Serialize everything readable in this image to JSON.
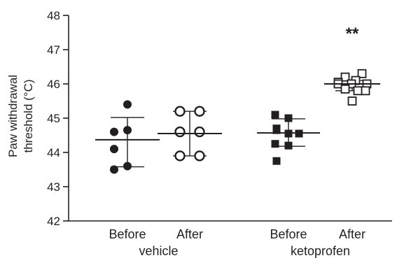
{
  "chart_data": {
    "type": "scatter",
    "title": "",
    "ylabel_line1": "Paw withdrawal",
    "ylabel_line2": "threshold (°C)",
    "ylim": [
      42,
      48
    ],
    "yticks": [
      42,
      43,
      44,
      45,
      46,
      47,
      48
    ],
    "groups": [
      {
        "label": "vehicle",
        "categories": [
          0,
          1
        ]
      },
      {
        "label": "ketoprofen",
        "categories": [
          2,
          3
        ]
      }
    ],
    "categories": [
      {
        "label": "Before",
        "group": "vehicle",
        "marker": "filled-circle",
        "values": [
          45.4,
          44.6,
          44.65,
          44.1,
          43.5,
          43.6
        ],
        "mean": 44.37,
        "sd_upper": 45.02,
        "sd_lower": 43.58
      },
      {
        "label": "After",
        "group": "vehicle",
        "marker": "open-circle",
        "values": [
          45.2,
          45.2,
          44.6,
          44.6,
          43.9,
          43.9
        ],
        "mean": 44.55,
        "sd_upper": 45.2,
        "sd_lower": 43.9
      },
      {
        "label": "Before",
        "group": "ketoprofen",
        "marker": "filled-square",
        "values": [
          45.1,
          45.0,
          44.7,
          44.55,
          44.55,
          44.65,
          44.25,
          44.2,
          43.75
        ],
        "mean": 44.57,
        "sd_upper": 44.98,
        "sd_lower": 44.18
      },
      {
        "label": "After",
        "group": "ketoprofen",
        "marker": "open-square",
        "values": [
          46.3,
          46.2,
          46.1,
          46.05,
          46.0,
          46.0,
          46.0,
          45.85,
          45.8,
          45.8,
          45.5
        ],
        "mean": 46.0,
        "sd_upper": 46.1,
        "sd_lower": 45.8,
        "annotation": "**"
      }
    ]
  }
}
